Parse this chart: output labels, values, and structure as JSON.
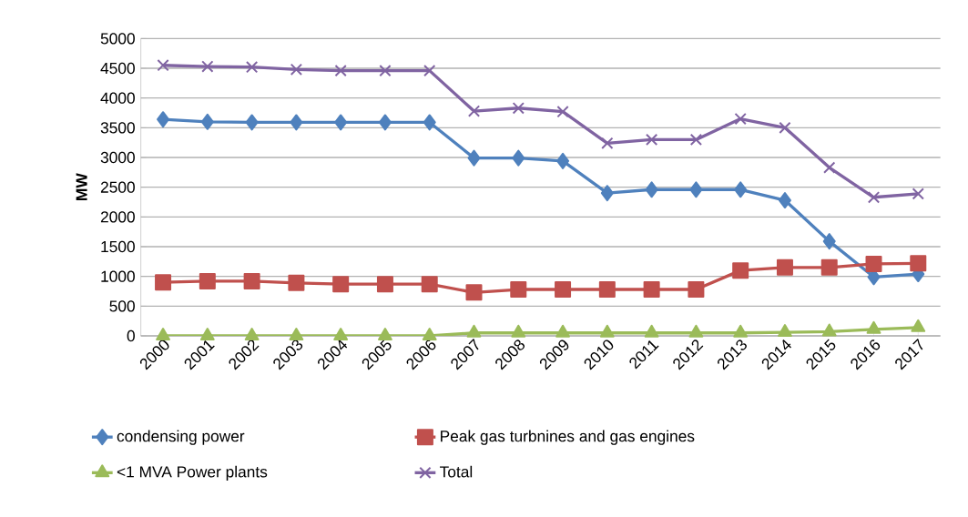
{
  "chart_data": {
    "type": "line",
    "ylabel": "MW",
    "categories": [
      "2000",
      "2001",
      "2002",
      "2003",
      "2004",
      "2005",
      "2006",
      "2007",
      "2008",
      "2009",
      "2010",
      "2011",
      "2012",
      "2013",
      "2014",
      "2015",
      "2016",
      "2017"
    ],
    "series": [
      {
        "name": "condensing power",
        "color": "#4f81bd",
        "marker": "diamond",
        "values": [
          3640,
          3600,
          3590,
          3590,
          3590,
          3590,
          3590,
          2990,
          2990,
          2940,
          2400,
          2460,
          2460,
          2460,
          2280,
          1590,
          990,
          1040
        ]
      },
      {
        "name": "Peak gas turbnines and gas engines",
        "color": "#c0504d",
        "marker": "square",
        "values": [
          900,
          920,
          920,
          890,
          870,
          870,
          870,
          730,
          780,
          780,
          780,
          780,
          780,
          1100,
          1150,
          1150,
          1210,
          1220
        ]
      },
      {
        "name": "<1 MVA Power plants",
        "color": "#9bbb59",
        "marker": "triangle",
        "values": [
          0,
          0,
          0,
          0,
          0,
          0,
          0,
          50,
          50,
          50,
          50,
          50,
          50,
          50,
          60,
          70,
          110,
          140
        ]
      },
      {
        "name": "Total",
        "color": "#8064a2",
        "marker": "cross",
        "values": [
          4550,
          4530,
          4520,
          4480,
          4460,
          4460,
          4460,
          3780,
          3830,
          3770,
          3240,
          3300,
          3300,
          3650,
          3500,
          2830,
          2330,
          2390
        ]
      }
    ],
    "ylim": [
      0,
      5000
    ],
    "yticks": [
      0,
      500,
      1000,
      1500,
      2000,
      2500,
      3000,
      3500,
      4000,
      4500,
      5000
    ],
    "grid": "y",
    "legend": "bottom",
    "line_style": "solid"
  }
}
